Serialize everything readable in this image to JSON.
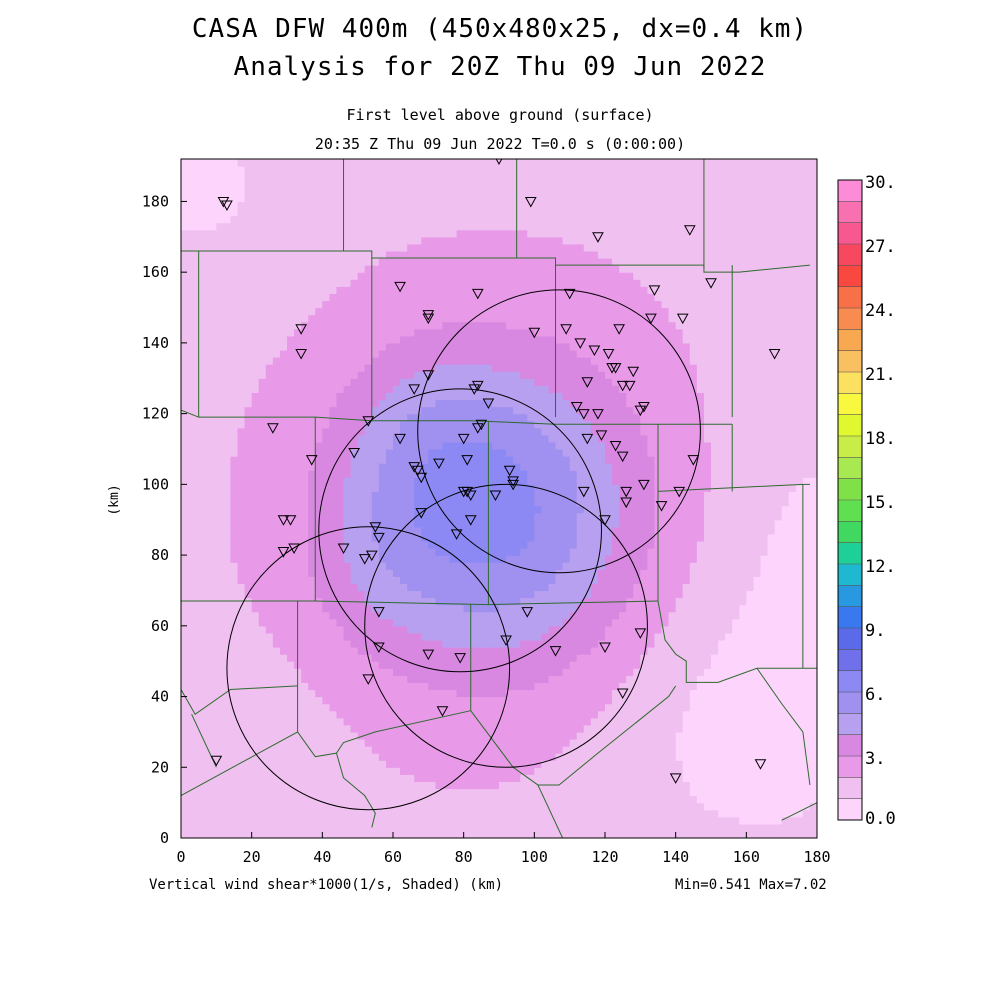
{
  "header": {
    "title_line1": "CASA DFW 400m (450x480x25, dx=0.4 km)",
    "title_line2": "Analysis for 20Z Thu 09 Jun 2022",
    "level": "First level above ground (surface)",
    "time": "20:35 Z Thu 09 Jun 2022    T=0.0 s (0:00:00)"
  },
  "footer": {
    "variable": "Vertical wind shear*1000(1/s, Shaded)  (km)",
    "minmax": "Min=0.541 Max=7.02"
  },
  "chart_data": {
    "type": "heatmap",
    "title": "Vertical wind shear*1000 (1/s)",
    "xlabel": "(km)",
    "ylabel": "(km)",
    "xlim": [
      0,
      180
    ],
    "ylim": [
      0,
      192
    ],
    "x_ticks": [
      0,
      20,
      40,
      60,
      80,
      100,
      120,
      140,
      160,
      180
    ],
    "y_ticks": [
      0,
      20,
      40,
      60,
      80,
      100,
      120,
      140,
      160,
      180
    ],
    "min": 0.541,
    "max": 7.02,
    "colorbar": {
      "labels": [
        {
          "value": 0,
          "text": "0.0"
        },
        {
          "value": 3,
          "text": "3."
        },
        {
          "value": 6,
          "text": "6."
        },
        {
          "value": 9,
          "text": "9."
        },
        {
          "value": 12,
          "text": "12."
        },
        {
          "value": 15,
          "text": "15."
        },
        {
          "value": 18,
          "text": "18."
        },
        {
          "value": 21,
          "text": "21."
        },
        {
          "value": 24,
          "text": "24."
        },
        {
          "value": 27,
          "text": "27."
        },
        {
          "value": 30,
          "text": "30."
        }
      ],
      "colors": [
        "#fcd4fc",
        "#f0c0f0",
        "#e89ae8",
        "#d888e0",
        "#b8a0f0",
        "#a090f0",
        "#8c88f4",
        "#7070ea",
        "#5a6ae8",
        "#3a78f0",
        "#2898e0",
        "#1eb8d0",
        "#1ed098",
        "#40d860",
        "#60e050",
        "#80e048",
        "#a8e850",
        "#c8ec48",
        "#e0f830",
        "#f8f840",
        "#fce060",
        "#f8c060",
        "#f8a850",
        "#f88c50",
        "#f87048",
        "#f84840",
        "#f84860",
        "#f85890",
        "#f870b0",
        "#fc8cd8"
      ]
    },
    "field": {
      "base_value": 1.8,
      "components": [
        {
          "name": "core",
          "cx": 88,
          "cy": 92,
          "rx": 42,
          "ry": 45,
          "amp": 4.6
        },
        {
          "name": "northwest-lobe",
          "cx": 68,
          "cy": 116,
          "rx": 22,
          "ry": 24,
          "amp": 0.8
        },
        {
          "name": "west-lobe",
          "cx": 55,
          "cy": 80,
          "rx": 20,
          "ry": 26,
          "amp": 0.7
        },
        {
          "name": "cool-southeast",
          "cx": 160,
          "cy": 30,
          "rx": 40,
          "ry": 40,
          "amp": -1.1
        },
        {
          "name": "cool-northwest",
          "cx": 5,
          "cy": 185,
          "rx": 28,
          "ry": 28,
          "amp": -1.0
        },
        {
          "name": "cool-southwest",
          "cx": 8,
          "cy": 20,
          "rx": 30,
          "ry": 30,
          "amp": -0.7
        },
        {
          "name": "cool-east",
          "cx": 178,
          "cy": 85,
          "rx": 28,
          "ry": 55,
          "amp": -0.9
        }
      ]
    },
    "radar_rings": [
      {
        "name": "radar-ring-northeast",
        "cx": 107,
        "cy": 115,
        "r": 40
      },
      {
        "name": "radar-ring-north",
        "cx": 79,
        "cy": 87,
        "r": 40
      },
      {
        "name": "radar-ring-south",
        "cx": 92,
        "cy": 60,
        "r": 40
      },
      {
        "name": "radar-ring-southwest",
        "cx": 53,
        "cy": 48,
        "r": 40
      }
    ],
    "stations": [
      [
        12,
        180
      ],
      [
        13,
        179
      ],
      [
        90,
        192
      ],
      [
        99,
        180
      ],
      [
        118,
        170
      ],
      [
        144,
        172
      ],
      [
        150,
        157
      ],
      [
        62,
        156
      ],
      [
        84,
        154
      ],
      [
        110,
        154
      ],
      [
        134,
        155
      ],
      [
        34,
        144
      ],
      [
        70,
        148
      ],
      [
        70,
        147
      ],
      [
        100,
        143
      ],
      [
        109,
        144
      ],
      [
        124,
        144
      ],
      [
        133,
        147
      ],
      [
        142,
        147
      ],
      [
        34,
        137
      ],
      [
        113,
        140
      ],
      [
        117,
        138
      ],
      [
        121,
        137
      ],
      [
        123,
        133
      ],
      [
        122,
        133
      ],
      [
        128,
        132
      ],
      [
        168,
        137
      ],
      [
        66,
        127
      ],
      [
        70,
        131
      ],
      [
        83,
        127
      ],
      [
        84,
        128
      ],
      [
        115,
        129
      ],
      [
        125,
        128
      ],
      [
        127,
        128
      ],
      [
        87,
        123
      ],
      [
        112,
        122
      ],
      [
        114,
        120
      ],
      [
        118,
        120
      ],
      [
        130,
        121
      ],
      [
        131,
        122
      ],
      [
        26,
        116
      ],
      [
        53,
        118
      ],
      [
        85,
        117
      ],
      [
        84,
        116
      ],
      [
        62,
        113
      ],
      [
        80,
        113
      ],
      [
        115,
        113
      ],
      [
        119,
        114
      ],
      [
        123,
        111
      ],
      [
        37,
        107
      ],
      [
        49,
        109
      ],
      [
        66,
        105
      ],
      [
        67,
        104
      ],
      [
        73,
        106
      ],
      [
        81,
        107
      ],
      [
        93,
        104
      ],
      [
        94,
        101
      ],
      [
        125,
        108
      ],
      [
        145,
        107
      ],
      [
        68,
        102
      ],
      [
        94,
        100
      ],
      [
        80,
        98
      ],
      [
        81,
        98
      ],
      [
        82,
        97
      ],
      [
        89,
        97
      ],
      [
        114,
        98
      ],
      [
        131,
        100
      ],
      [
        141,
        98
      ],
      [
        126,
        98
      ],
      [
        29,
        90
      ],
      [
        31,
        90
      ],
      [
        68,
        92
      ],
      [
        82,
        90
      ],
      [
        120,
        90
      ],
      [
        126,
        95
      ],
      [
        29,
        81
      ],
      [
        32,
        82
      ],
      [
        46,
        82
      ],
      [
        55,
        88
      ],
      [
        56,
        85
      ],
      [
        52,
        79
      ],
      [
        54,
        80
      ],
      [
        78,
        86
      ],
      [
        136,
        94
      ],
      [
        56,
        64
      ],
      [
        98,
        64
      ],
      [
        130,
        58
      ],
      [
        56,
        54
      ],
      [
        70,
        52
      ],
      [
        79,
        51
      ],
      [
        92,
        56
      ],
      [
        106,
        53
      ],
      [
        120,
        54
      ],
      [
        53,
        45
      ],
      [
        125,
        41
      ],
      [
        74,
        36
      ],
      [
        10,
        22
      ],
      [
        140,
        17
      ],
      [
        164,
        21
      ]
    ],
    "counties": [
      {
        "name": "county-row1-a",
        "points": [
          [
            0,
            166
          ],
          [
            46,
            166
          ]
        ]
      },
      {
        "name": "county-row1-b",
        "points": [
          [
            46,
            166
          ],
          [
            46,
            178
          ],
          [
            46,
            192
          ]
        ]
      },
      {
        "name": "county-row1-c",
        "points": [
          [
            95,
            192
          ],
          [
            95,
            164
          ]
        ]
      },
      {
        "name": "county-row1-d",
        "points": [
          [
            148,
            192
          ],
          [
            148,
            161
          ]
        ]
      },
      {
        "name": "county-row2-top",
        "points": [
          [
            5,
            166
          ],
          [
            54,
            166
          ],
          [
            54,
            164
          ],
          [
            106,
            164
          ],
          [
            106,
            162
          ],
          [
            148,
            162
          ],
          [
            148,
            160
          ],
          [
            158,
            160
          ],
          [
            178,
            162
          ]
        ]
      },
      {
        "name": "county-row2-west",
        "points": [
          [
            5,
            166
          ],
          [
            5,
            119
          ]
        ]
      },
      {
        "name": "county-row2-v1",
        "points": [
          [
            54,
            164
          ],
          [
            54,
            119
          ]
        ]
      },
      {
        "name": "county-row2-v2",
        "points": [
          [
            106,
            162
          ],
          [
            106,
            119
          ]
        ]
      },
      {
        "name": "county-row2-v3",
        "points": [
          [
            156,
            162
          ],
          [
            156,
            119
          ]
        ]
      },
      {
        "name": "county-row3-top",
        "points": [
          [
            0,
            121
          ],
          [
            5,
            119
          ],
          [
            38,
            119
          ],
          [
            54,
            118
          ],
          [
            82,
            118
          ],
          [
            106,
            117
          ],
          [
            156,
            117
          ]
        ]
      },
      {
        "name": "county-row3-v1",
        "points": [
          [
            38,
            119
          ],
          [
            38,
            67
          ]
        ]
      },
      {
        "name": "county-row3-v2",
        "points": [
          [
            87,
            118
          ],
          [
            87,
            66
          ]
        ]
      },
      {
        "name": "county-row3-v3",
        "points": [
          [
            135,
            117
          ],
          [
            135,
            67
          ]
        ]
      },
      {
        "name": "county-row3-v4",
        "points": [
          [
            156,
            117
          ],
          [
            156,
            98
          ]
        ]
      },
      {
        "name": "county-row3-east",
        "points": [
          [
            135,
            98
          ],
          [
            176,
            100
          ],
          [
            178,
            100
          ]
        ]
      },
      {
        "name": "county-row4-top",
        "points": [
          [
            0,
            67
          ],
          [
            38,
            67
          ],
          [
            87,
            66
          ],
          [
            135,
            67
          ]
        ]
      },
      {
        "name": "county-row4-east",
        "points": [
          [
            176,
            100
          ],
          [
            176,
            48
          ]
        ]
      },
      {
        "name": "county-row4-v1",
        "points": [
          [
            33,
            67
          ],
          [
            33,
            43
          ],
          [
            33,
            30
          ]
        ]
      },
      {
        "name": "county-row4-v2",
        "points": [
          [
            82,
            66
          ],
          [
            82,
            36
          ]
        ]
      },
      {
        "name": "county-river-east",
        "points": [
          [
            135,
            67
          ],
          [
            137,
            56
          ],
          [
            140,
            52
          ],
          [
            143,
            50
          ],
          [
            143,
            44
          ],
          [
            148,
            44
          ],
          [
            152,
            44
          ],
          [
            163,
            48
          ],
          [
            176,
            48
          ],
          [
            180,
            48
          ]
        ]
      },
      {
        "name": "county-row4-sw",
        "points": [
          [
            0,
            42
          ],
          [
            4,
            35
          ],
          [
            14,
            42
          ],
          [
            33,
            43
          ]
        ]
      },
      {
        "name": "county-row5-a",
        "points": [
          [
            3,
            35
          ],
          [
            10,
            20
          ]
        ]
      },
      {
        "name": "county-row5-b",
        "points": [
          [
            33,
            30
          ],
          [
            38,
            23
          ],
          [
            44,
            24
          ],
          [
            46,
            27
          ],
          [
            55,
            30
          ],
          [
            82,
            36
          ]
        ]
      },
      {
        "name": "county-row5-c",
        "points": [
          [
            82,
            36
          ],
          [
            94,
            20
          ],
          [
            101,
            15
          ],
          [
            107,
            15
          ],
          [
            118,
            24
          ],
          [
            138,
            40
          ],
          [
            140,
            43
          ]
        ]
      },
      {
        "name": "county-row5-d",
        "points": [
          [
            0,
            12
          ],
          [
            33,
            30
          ]
        ]
      },
      {
        "name": "county-row5-e",
        "points": [
          [
            44,
            24
          ],
          [
            46,
            17
          ],
          [
            52,
            12
          ],
          [
            55,
            7
          ],
          [
            54,
            3
          ]
        ]
      },
      {
        "name": "county-row5-f",
        "points": [
          [
            101,
            15
          ],
          [
            108,
            0
          ]
        ]
      },
      {
        "name": "county-row5-g",
        "points": [
          [
            163,
            48
          ],
          [
            170,
            38
          ],
          [
            176,
            30
          ],
          [
            178,
            15
          ]
        ]
      },
      {
        "name": "county-row5-h",
        "points": [
          [
            170,
            5
          ],
          [
            180,
            10
          ]
        ]
      }
    ]
  }
}
